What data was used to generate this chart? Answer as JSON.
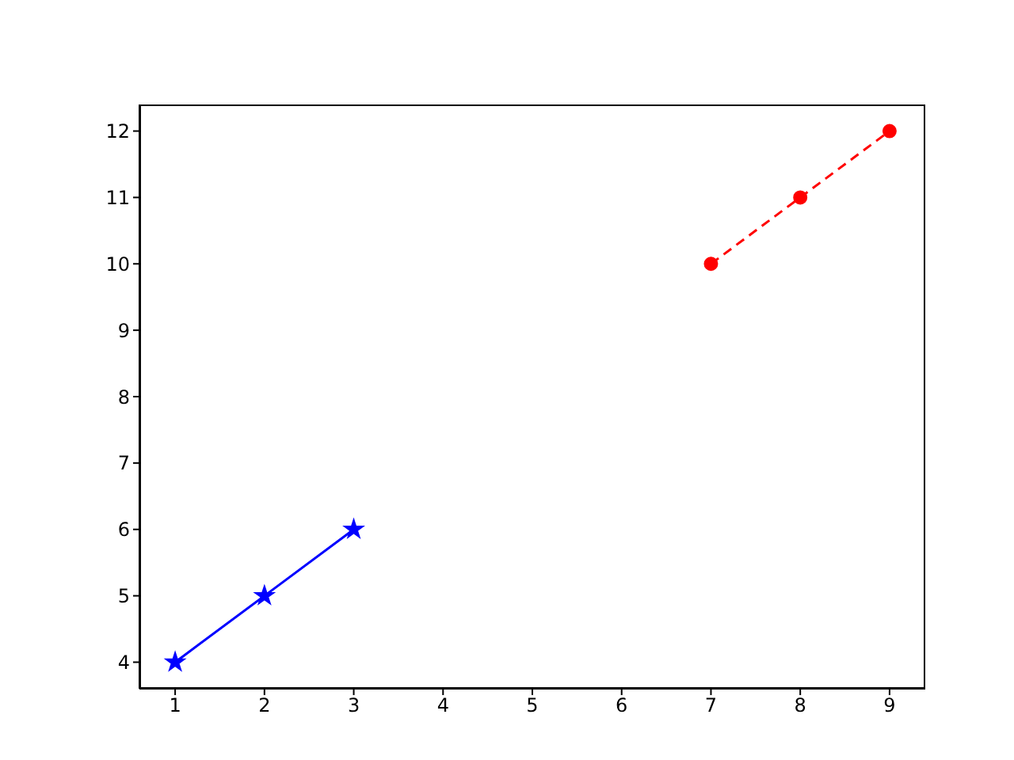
{
  "chart_data": {
    "type": "line",
    "xlim": [
      0.6,
      9.4
    ],
    "ylim": [
      3.6,
      12.4
    ],
    "xticks": [
      1,
      2,
      3,
      4,
      5,
      6,
      7,
      8,
      9
    ],
    "yticks": [
      4,
      5,
      6,
      7,
      8,
      9,
      10,
      11,
      12
    ],
    "grid": false,
    "legend": false,
    "series": [
      {
        "x": [
          1,
          2,
          3
        ],
        "values": [
          4,
          5,
          6
        ],
        "color": "#0000ff",
        "marker": "star",
        "line_style": "solid"
      },
      {
        "x": [
          7,
          8,
          9
        ],
        "values": [
          10,
          11,
          12
        ],
        "color": "#ff0000",
        "marker": "circle",
        "line_style": "dashed"
      }
    ]
  }
}
